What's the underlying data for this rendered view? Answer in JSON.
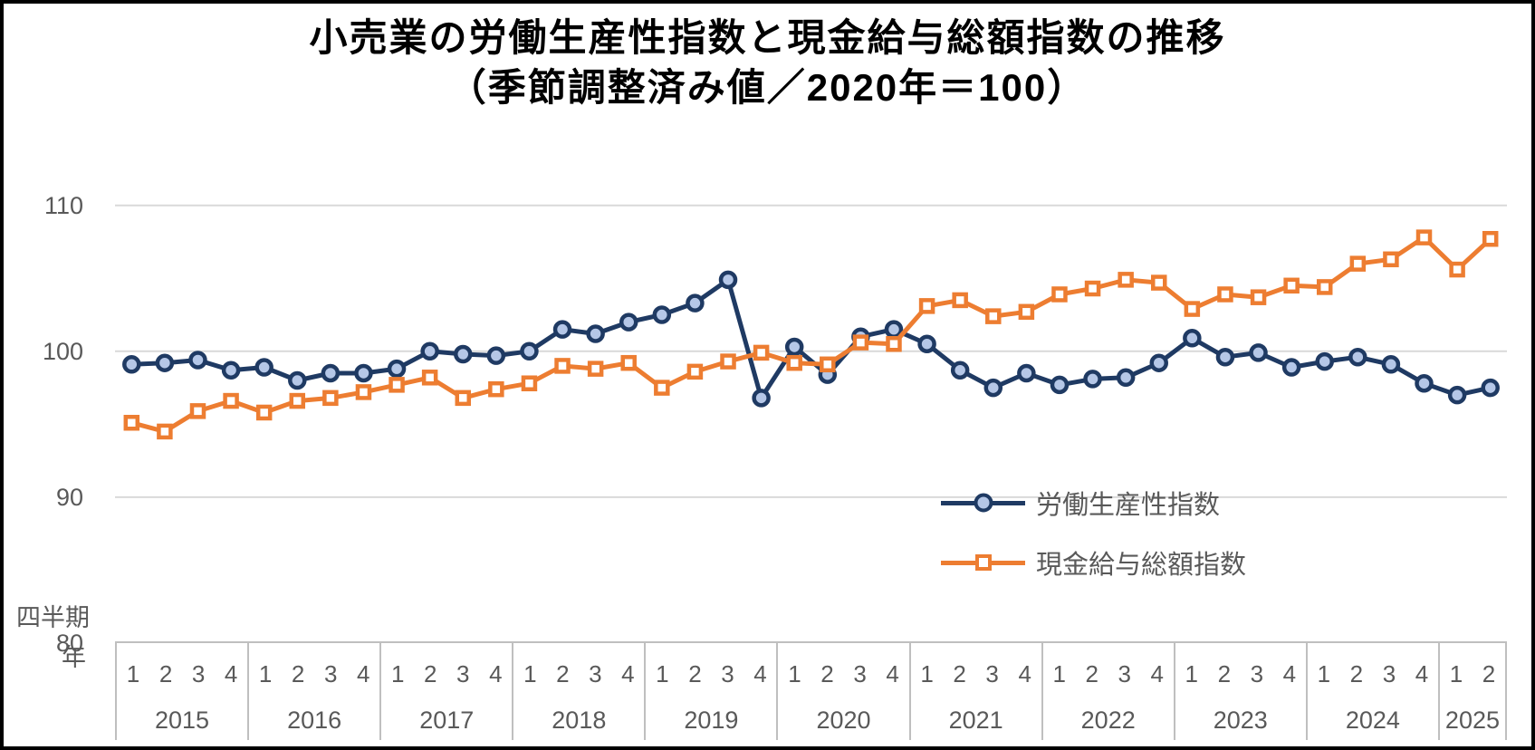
{
  "title": {
    "line1": "小売業の労働生産性指数と現金給与総額指数の推移",
    "line2": "（季節調整済み値／2020年＝100）"
  },
  "axis_titles": {
    "quarter": "四半期",
    "year": "年"
  },
  "colors": {
    "productivity_line": "#1F3A63",
    "productivity_marker_fill": "#B5C7E7",
    "wage_line": "#ED7D31",
    "wage_marker_fill": "#FFFFFF",
    "gridline": "#D9D9D9",
    "table_border": "#BFBFBF",
    "axis_text": "#595959",
    "title_text": "#000000",
    "frame_border": "#000000"
  },
  "chart_data": {
    "type": "line",
    "title": "小売業の労働生産性指数と現金給与総額指数の推移（季節調整済み値／2020年＝100）",
    "ylim": [
      80,
      110
    ],
    "y_ticks": [
      110,
      100,
      90,
      80
    ],
    "grid": "horizontal",
    "legend_position": "center-right",
    "x_axis": {
      "level1_label": "四半期",
      "level2_label": "年",
      "years": [
        {
          "label": "2015",
          "quarters": [
            "1",
            "2",
            "3",
            "4"
          ]
        },
        {
          "label": "2016",
          "quarters": [
            "1",
            "2",
            "3",
            "4"
          ]
        },
        {
          "label": "2017",
          "quarters": [
            "1",
            "2",
            "3",
            "4"
          ]
        },
        {
          "label": "2018",
          "quarters": [
            "1",
            "2",
            "3",
            "4"
          ]
        },
        {
          "label": "2019",
          "quarters": [
            "1",
            "2",
            "3",
            "4"
          ]
        },
        {
          "label": "2020",
          "quarters": [
            "1",
            "2",
            "3",
            "4"
          ]
        },
        {
          "label": "2021",
          "quarters": [
            "1",
            "2",
            "3",
            "4"
          ]
        },
        {
          "label": "2022",
          "quarters": [
            "1",
            "2",
            "3",
            "4"
          ]
        },
        {
          "label": "2023",
          "quarters": [
            "1",
            "2",
            "3",
            "4"
          ]
        },
        {
          "label": "2024",
          "quarters": [
            "1",
            "2",
            "3",
            "4"
          ]
        },
        {
          "label": "2025",
          "quarters": [
            "1",
            "2"
          ]
        }
      ]
    },
    "series": [
      {
        "name": "労働生産性指数",
        "marker": "circle",
        "color": "#1F3A63",
        "marker_fill": "#B5C7E7",
        "values": [
          99.1,
          99.2,
          99.4,
          98.7,
          98.9,
          98.0,
          98.5,
          98.5,
          98.8,
          100.0,
          99.8,
          99.7,
          100.0,
          101.5,
          101.2,
          102.0,
          102.5,
          103.3,
          104.9,
          96.8,
          100.3,
          98.4,
          101.0,
          101.5,
          100.5,
          98.7,
          97.5,
          98.5,
          97.7,
          98.1,
          98.2,
          99.2,
          100.9,
          99.6,
          99.9,
          98.9,
          99.3,
          99.6,
          99.1,
          97.8,
          97.0,
          97.5
        ]
      },
      {
        "name": "現金給与総額指数",
        "marker": "square",
        "color": "#ED7D31",
        "marker_fill": "#FFFFFF",
        "values": [
          95.1,
          94.5,
          95.9,
          96.6,
          95.8,
          96.6,
          96.8,
          97.2,
          97.7,
          98.2,
          96.8,
          97.4,
          97.8,
          99.0,
          98.8,
          99.2,
          97.5,
          98.6,
          99.3,
          99.9,
          99.2,
          99.1,
          100.6,
          100.5,
          103.1,
          103.5,
          102.4,
          102.7,
          103.9,
          104.3,
          104.9,
          104.7,
          102.9,
          103.9,
          103.7,
          104.5,
          104.4,
          106.0,
          106.3,
          107.8,
          105.6,
          107.7
        ]
      }
    ]
  }
}
